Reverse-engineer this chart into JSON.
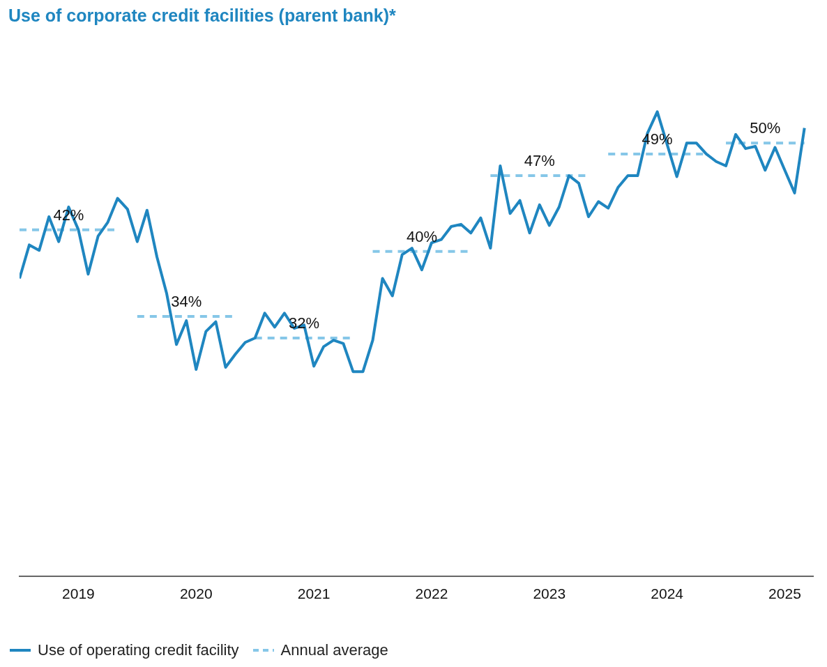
{
  "chart_data": {
    "type": "line",
    "title": "Use of corporate credit facilities (parent bank)*",
    "xlim": [
      2019,
      2025.74
    ],
    "xticks": [
      {
        "value": 2019.5,
        "label": "2019"
      },
      {
        "value": 2020.5,
        "label": "2020"
      },
      {
        "value": 2021.5,
        "label": "2021"
      },
      {
        "value": 2022.5,
        "label": "2022"
      },
      {
        "value": 2023.5,
        "label": "2023"
      },
      {
        "value": 2024.5,
        "label": "2024"
      },
      {
        "value": 2025.5,
        "label": "2025"
      }
    ],
    "tick_labels": "x",
    "legend": "bottom left",
    "marker": "none",
    "series": [
      {
        "name": "Use of operating credit facility",
        "color": "#1f86c0",
        "line_style": "solid",
        "x": [
          2019,
          2019.083,
          2019.167,
          2019.25,
          2019.333,
          2019.417,
          2019.5,
          2019.583,
          2019.667,
          2019.75,
          2019.833,
          2019.917,
          2020,
          2020.083,
          2020.167,
          2020.25,
          2020.333,
          2020.417,
          2020.5,
          2020.583,
          2020.667,
          2020.75,
          2020.833,
          2020.917,
          2021,
          2021.083,
          2021.167,
          2021.25,
          2021.333,
          2021.417,
          2021.5,
          2021.583,
          2021.667,
          2021.75,
          2021.833,
          2021.917,
          2022,
          2022.083,
          2022.167,
          2022.25,
          2022.333,
          2022.417,
          2022.5,
          2022.583,
          2022.667,
          2022.75,
          2022.833,
          2022.917,
          2023,
          2023.083,
          2023.167,
          2023.25,
          2023.333,
          2023.417,
          2023.5,
          2023.583,
          2023.667,
          2023.75,
          2023.833,
          2023.917,
          2024,
          2024.083,
          2024.167,
          2024.25,
          2024.333,
          2024.417,
          2024.5,
          2024.583,
          2024.667,
          2024.75,
          2024.833,
          2024.917,
          2025,
          2025.083,
          2025.167,
          2025.25,
          2025.333,
          2025.417,
          2025.5,
          2025.583,
          2025.667
        ],
        "values": [
          37.5,
          40.6,
          40.1,
          43.2,
          40.9,
          44.1,
          42.0,
          37.9,
          41.4,
          42.7,
          44.9,
          43.9,
          40.9,
          43.8,
          39.5,
          36.1,
          31.4,
          33.6,
          29.1,
          32.6,
          33.5,
          29.3,
          30.5,
          31.6,
          32.0,
          34.3,
          33.0,
          34.3,
          32.9,
          33.2,
          29.4,
          31.2,
          31.8,
          31.5,
          28.9,
          28.9,
          31.8,
          37.5,
          35.9,
          39.7,
          40.3,
          38.3,
          40.8,
          41.1,
          42.3,
          42.5,
          41.7,
          43.1,
          40.3,
          47.9,
          43.5,
          44.7,
          41.7,
          44.3,
          42.4,
          44.1,
          47.0,
          46.3,
          43.2,
          44.6,
          44.0,
          45.9,
          47.0,
          47.0,
          50.9,
          52.9,
          49.9,
          46.9,
          50.0,
          50.0,
          49.0,
          48.3,
          47.9,
          50.8,
          49.5,
          49.7,
          47.5,
          49.6,
          47.5,
          45.4,
          51.4
        ]
      },
      {
        "name": "Annual average",
        "color": "#86c7e8",
        "line_style": "dashed",
        "x": [
          2019,
          2019.417,
          2019.833,
          2019.9,
          2020,
          2020.417,
          2020.833,
          2020.9,
          2021,
          2021.417,
          2021.833,
          2021.9,
          2022,
          2022.417,
          2022.833,
          2022.9,
          2023,
          2023.417,
          2023.833,
          2023.9,
          2024,
          2024.417,
          2024.833,
          2024.9,
          2025,
          2025.333,
          2025.667
        ],
        "values": [
          42,
          42,
          42,
          null,
          34,
          34,
          34,
          null,
          32,
          32,
          32,
          null,
          40,
          40,
          40,
          null,
          47,
          47,
          47,
          null,
          49,
          49,
          49,
          null,
          50,
          50,
          50
        ],
        "value_labels": [
          null,
          "42%",
          null,
          null,
          null,
          "34%",
          null,
          null,
          null,
          "32%",
          null,
          null,
          null,
          "40%",
          null,
          null,
          null,
          "47%",
          null,
          null,
          null,
          "49%",
          null,
          null,
          null,
          "50%",
          null
        ]
      }
    ]
  }
}
